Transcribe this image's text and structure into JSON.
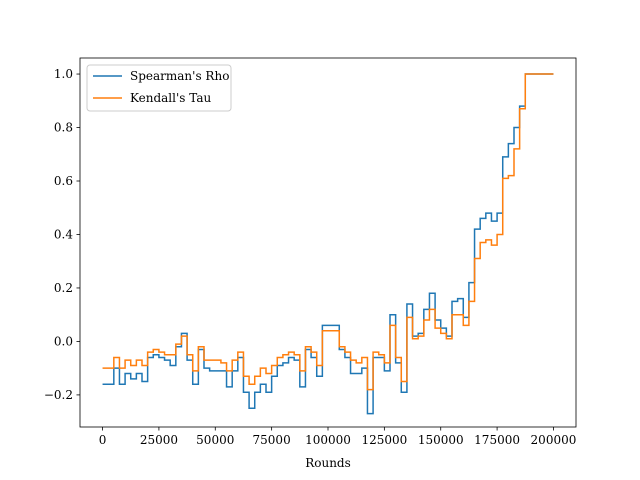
{
  "chart_data": {
    "type": "line",
    "drawstyle": "steps",
    "title": "",
    "xlabel": "Rounds",
    "ylabel": "",
    "xlim": [
      -10000,
      210000
    ],
    "ylim": [
      -0.32,
      1.06
    ],
    "xticks": [
      0,
      25000,
      50000,
      75000,
      100000,
      125000,
      150000,
      175000,
      200000
    ],
    "xtick_labels": [
      "0",
      "25000",
      "50000",
      "75000",
      "100000",
      "125000",
      "150000",
      "175000",
      "200000"
    ],
    "yticks": [
      -0.2,
      0.0,
      0.2,
      0.4,
      0.6,
      0.8,
      1.0
    ],
    "ytick_labels": [
      "−0.2",
      "0.0",
      "0.2",
      "0.4",
      "0.6",
      "0.8",
      "1.0"
    ],
    "grid": false,
    "legend_position": "top-left",
    "series": [
      {
        "name": "Spearman's Rho",
        "color": "#1f77b4",
        "x": [
          0,
          2500,
          5000,
          7500,
          10000,
          12500,
          15000,
          17500,
          20000,
          22500,
          25000,
          27500,
          30000,
          32500,
          35000,
          37500,
          40000,
          42500,
          45000,
          47500,
          50000,
          52500,
          55000,
          57500,
          60000,
          62500,
          65000,
          67500,
          70000,
          72500,
          75000,
          77500,
          80000,
          82500,
          85000,
          87500,
          90000,
          92500,
          95000,
          97500,
          100000,
          102500,
          105000,
          107500,
          110000,
          112500,
          115000,
          117500,
          120000,
          122500,
          125000,
          127500,
          130000,
          132500,
          135000,
          137500,
          140000,
          142500,
          145000,
          147500,
          150000,
          152500,
          155000,
          157500,
          160000,
          162500,
          165000,
          167500,
          170000,
          172500,
          175000,
          177500,
          180000,
          182500,
          185000,
          187500,
          190000,
          192500,
          195000,
          197500,
          200000
        ],
        "values": [
          -0.16,
          -0.16,
          -0.1,
          -0.16,
          -0.12,
          -0.14,
          -0.12,
          -0.15,
          -0.06,
          -0.05,
          -0.06,
          -0.07,
          -0.09,
          -0.02,
          0.03,
          -0.07,
          -0.16,
          -0.03,
          -0.1,
          -0.11,
          -0.11,
          -0.11,
          -0.17,
          -0.11,
          -0.06,
          -0.19,
          -0.25,
          -0.19,
          -0.16,
          -0.19,
          -0.13,
          -0.09,
          -0.08,
          -0.06,
          -0.07,
          -0.17,
          -0.03,
          -0.06,
          -0.13,
          0.06,
          0.06,
          0.06,
          -0.03,
          -0.06,
          -0.12,
          -0.12,
          -0.1,
          -0.27,
          -0.06,
          -0.06,
          -0.11,
          0.1,
          -0.08,
          -0.19,
          0.14,
          0.02,
          0.03,
          0.12,
          0.18,
          0.08,
          0.05,
          0.02,
          0.15,
          0.16,
          0.09,
          0.22,
          0.42,
          0.46,
          0.48,
          0.45,
          0.48,
          0.69,
          0.74,
          0.8,
          0.88,
          1.0,
          1.0,
          1.0,
          1.0,
          1.0,
          1.0
        ]
      },
      {
        "name": "Kendall's Tau",
        "color": "#ff7f0e",
        "x": [
          0,
          2500,
          5000,
          7500,
          10000,
          12500,
          15000,
          17500,
          20000,
          22500,
          25000,
          27500,
          30000,
          32500,
          35000,
          37500,
          40000,
          42500,
          45000,
          47500,
          50000,
          52500,
          55000,
          57500,
          60000,
          62500,
          65000,
          67500,
          70000,
          72500,
          75000,
          77500,
          80000,
          82500,
          85000,
          87500,
          90000,
          92500,
          95000,
          97500,
          100000,
          102500,
          105000,
          107500,
          110000,
          112500,
          115000,
          117500,
          120000,
          122500,
          125000,
          127500,
          130000,
          132500,
          135000,
          137500,
          140000,
          142500,
          145000,
          147500,
          150000,
          152500,
          155000,
          157500,
          160000,
          162500,
          165000,
          167500,
          170000,
          172500,
          175000,
          177500,
          180000,
          182500,
          185000,
          187500,
          190000,
          192500,
          195000,
          197500,
          200000
        ],
        "values": [
          -0.1,
          -0.1,
          -0.06,
          -0.1,
          -0.07,
          -0.09,
          -0.07,
          -0.09,
          -0.04,
          -0.03,
          -0.04,
          -0.05,
          -0.05,
          -0.01,
          0.02,
          -0.05,
          -0.11,
          -0.02,
          -0.07,
          -0.07,
          -0.07,
          -0.08,
          -0.11,
          -0.07,
          -0.04,
          -0.13,
          -0.16,
          -0.13,
          -0.1,
          -0.12,
          -0.09,
          -0.06,
          -0.05,
          -0.04,
          -0.05,
          -0.11,
          -0.02,
          -0.04,
          -0.09,
          0.04,
          0.04,
          0.04,
          -0.02,
          -0.04,
          -0.07,
          -0.08,
          -0.06,
          -0.18,
          -0.04,
          -0.05,
          -0.08,
          0.06,
          -0.06,
          -0.15,
          0.09,
          0.01,
          0.02,
          0.08,
          0.12,
          0.05,
          0.03,
          0.01,
          0.1,
          0.1,
          0.06,
          0.15,
          0.31,
          0.37,
          0.38,
          0.36,
          0.4,
          0.61,
          0.62,
          0.72,
          0.87,
          1.0,
          1.0,
          1.0,
          1.0,
          1.0,
          1.0
        ]
      }
    ]
  }
}
